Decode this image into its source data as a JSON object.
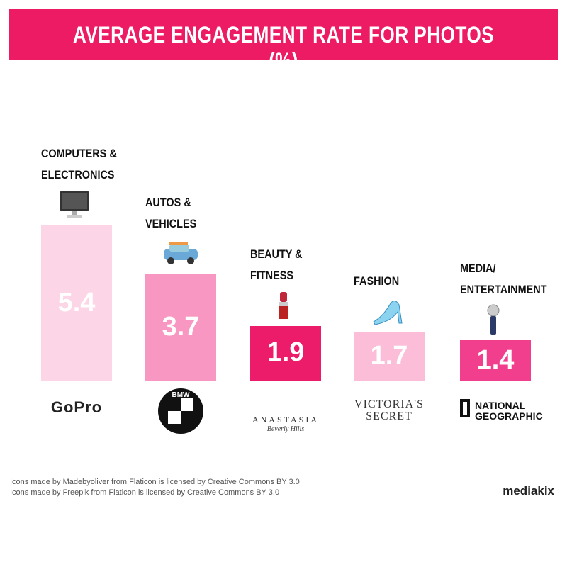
{
  "chart_data": {
    "type": "bar",
    "title": "AVERAGE ENGAGEMENT RATE FOR PHOTOS (%)",
    "categories": [
      "COMPUTERS &\nELECTRONICS",
      "AUTOS &\nVEHICLES",
      "BEAUTY &\nFITNESS",
      "FASHION",
      "MEDIA/\nENTERTAINMENT"
    ],
    "values": [
      5.4,
      3.7,
      1.9,
      1.7,
      1.4
    ],
    "colors": [
      "#fcd6e6",
      "#f898c2",
      "#ec1c6a",
      "#fbbdd8",
      "#f23f8d"
    ],
    "brands": [
      "GoPro",
      "BMW",
      "ANASTASIA",
      "VICTORIA'S\nSECRET",
      "NATIONAL\nGEOGRAPHIC"
    ],
    "brand_subtitle": "Beverly Hills",
    "credits": [
      "Icons made by Madebyoliver from Flaticon is licensed by Creative Commons BY 3.0",
      "Icons made by Freepik from Flaticon is licensed by Creative Commons BY 3.0"
    ],
    "source": "mediakix"
  }
}
